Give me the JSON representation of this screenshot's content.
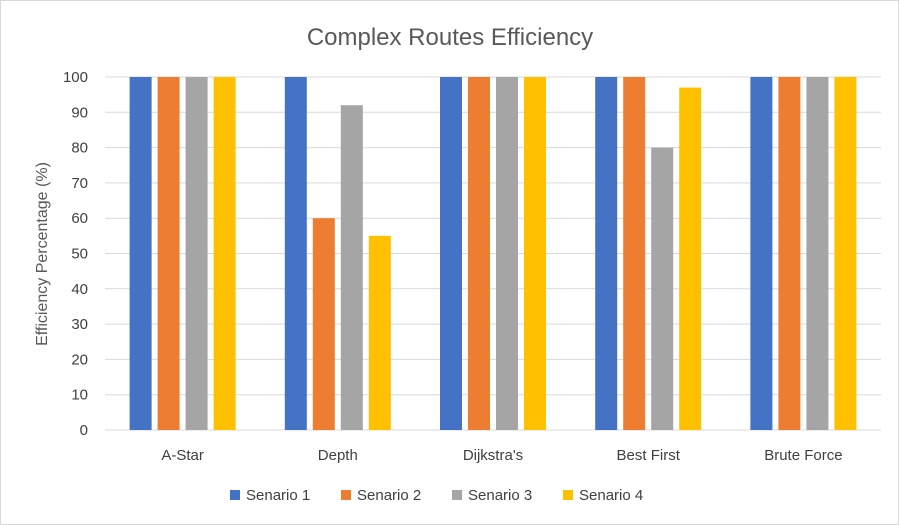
{
  "chart_data": {
    "type": "bar",
    "title": "Complex Routes Efficiency",
    "xlabel": "",
    "ylabel": "Efficiency Percentage (%)",
    "ylim": [
      0,
      100
    ],
    "yticks": [
      0,
      10,
      20,
      30,
      40,
      50,
      60,
      70,
      80,
      90,
      100
    ],
    "grid": true,
    "legend_position": "bottom",
    "categories": [
      "A-Star",
      "Depth",
      "Dijkstra's",
      "Best First",
      "Brute Force"
    ],
    "series": [
      {
        "name": "Senario 1",
        "color": "#4472c4",
        "values": [
          100,
          100,
          100,
          100,
          100
        ]
      },
      {
        "name": "Senario 2",
        "color": "#ed7d31",
        "values": [
          100,
          60,
          100,
          100,
          100
        ]
      },
      {
        "name": "Senario 3",
        "color": "#a5a5a5",
        "values": [
          100,
          92,
          100,
          80,
          100
        ]
      },
      {
        "name": "Senario 4",
        "color": "#ffc000",
        "values": [
          100,
          55,
          100,
          97,
          100
        ]
      }
    ]
  }
}
